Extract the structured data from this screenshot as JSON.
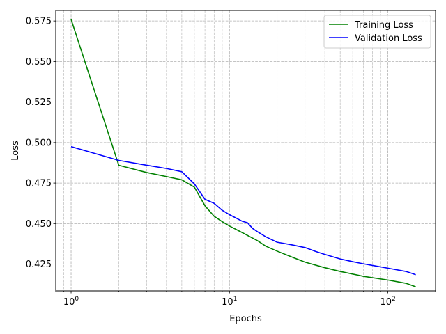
{
  "chart_data": {
    "type": "line",
    "xscale": "log",
    "xlabel": "Epochs",
    "ylabel": "Loss",
    "xlim": [
      0.8,
      200
    ],
    "ylim": [
      0.4085,
      0.5815
    ],
    "xticks": [
      {
        "value": 1,
        "base": "10",
        "exp": "0"
      },
      {
        "value": 10,
        "base": "10",
        "exp": "1"
      },
      {
        "value": 100,
        "base": "10",
        "exp": "2"
      }
    ],
    "yticks": [
      {
        "value": 0.425,
        "label": "0.425"
      },
      {
        "value": 0.45,
        "label": "0.450"
      },
      {
        "value": 0.475,
        "label": "0.475"
      },
      {
        "value": 0.5,
        "label": "0.500"
      },
      {
        "value": 0.525,
        "label": "0.525"
      },
      {
        "value": 0.55,
        "label": "0.550"
      },
      {
        "value": 0.575,
        "label": "0.575"
      }
    ],
    "grid": true,
    "legend_position": "upper right",
    "series": [
      {
        "name": "Training Loss",
        "color": "#008000",
        "x": [
          1,
          2,
          3,
          4,
          5,
          6,
          7,
          8,
          9,
          10,
          12,
          15,
          17,
          20,
          25,
          30,
          40,
          50,
          70,
          100,
          130,
          150
        ],
        "y": [
          0.576,
          0.486,
          0.4815,
          0.479,
          0.477,
          0.4725,
          0.461,
          0.4545,
          0.4512,
          0.4485,
          0.4445,
          0.4395,
          0.436,
          0.433,
          0.4292,
          0.4262,
          0.4228,
          0.4205,
          0.4175,
          0.4152,
          0.4132,
          0.411
        ]
      },
      {
        "name": "Validation Loss",
        "color": "#0000ff",
        "x": [
          1,
          2,
          3,
          4,
          5,
          6,
          7,
          8,
          9,
          10,
          12,
          13,
          14,
          15,
          17,
          20,
          22,
          25,
          30,
          35,
          40,
          50,
          60,
          70,
          80,
          100,
          130,
          150
        ],
        "y": [
          0.4975,
          0.489,
          0.486,
          0.484,
          0.482,
          0.4745,
          0.465,
          0.4625,
          0.4582,
          0.4555,
          0.4515,
          0.4505,
          0.447,
          0.445,
          0.4418,
          0.4385,
          0.4378,
          0.4368,
          0.4352,
          0.4328,
          0.431,
          0.4282,
          0.4265,
          0.4252,
          0.4242,
          0.4225,
          0.4205,
          0.4185
        ]
      }
    ]
  }
}
